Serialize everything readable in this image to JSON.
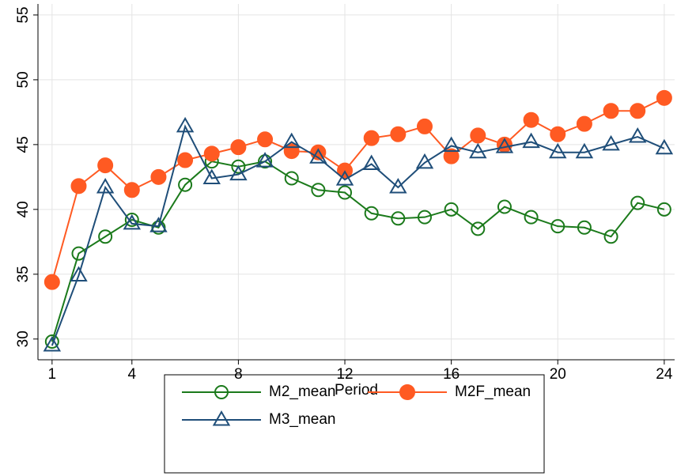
{
  "chart_data": {
    "type": "line",
    "x_label": "Period",
    "x": [
      1,
      2,
      3,
      4,
      5,
      6,
      7,
      8,
      9,
      10,
      11,
      12,
      13,
      14,
      15,
      16,
      17,
      18,
      19,
      20,
      21,
      22,
      23,
      24
    ],
    "xlim": [
      0.47,
      24.39
    ],
    "xticks": [
      1,
      4,
      8,
      12,
      16,
      20,
      24
    ],
    "ylim": [
      28.4,
      55.85
    ],
    "yticks": [
      30,
      35,
      40,
      45,
      50,
      55
    ],
    "grid": true,
    "legend": "bottom",
    "series": [
      {
        "name": "M2_mean",
        "color": "#1b7a1b",
        "marker": "circle-open",
        "values": [
          29.8,
          36.6,
          37.9,
          39.2,
          38.6,
          41.9,
          43.7,
          43.3,
          43.7,
          42.4,
          41.5,
          41.3,
          39.7,
          39.3,
          39.4,
          40.0,
          38.5,
          40.2,
          39.4,
          38.7,
          38.6,
          37.9,
          40.5,
          40.0
        ]
      },
      {
        "name": "M2F_mean",
        "color": "#ff5a22",
        "marker": "circle-filled",
        "values": [
          34.4,
          41.8,
          43.4,
          41.5,
          42.5,
          43.8,
          44.3,
          44.8,
          45.4,
          44.5,
          44.4,
          43.0,
          45.5,
          45.8,
          46.4,
          44.1,
          45.7,
          45.0,
          46.9,
          45.8,
          46.6,
          47.6,
          47.6,
          48.6
        ]
      },
      {
        "name": "M3_mean",
        "color": "#1f4e79",
        "marker": "triangle-open",
        "values": [
          29.5,
          34.9,
          41.7,
          38.9,
          38.7,
          46.4,
          42.4,
          42.7,
          43.7,
          45.2,
          44.0,
          42.3,
          43.5,
          41.7,
          43.6,
          44.9,
          44.4,
          44.8,
          45.2,
          44.4,
          44.4,
          45.0,
          45.6,
          44.7
        ]
      }
    ]
  }
}
